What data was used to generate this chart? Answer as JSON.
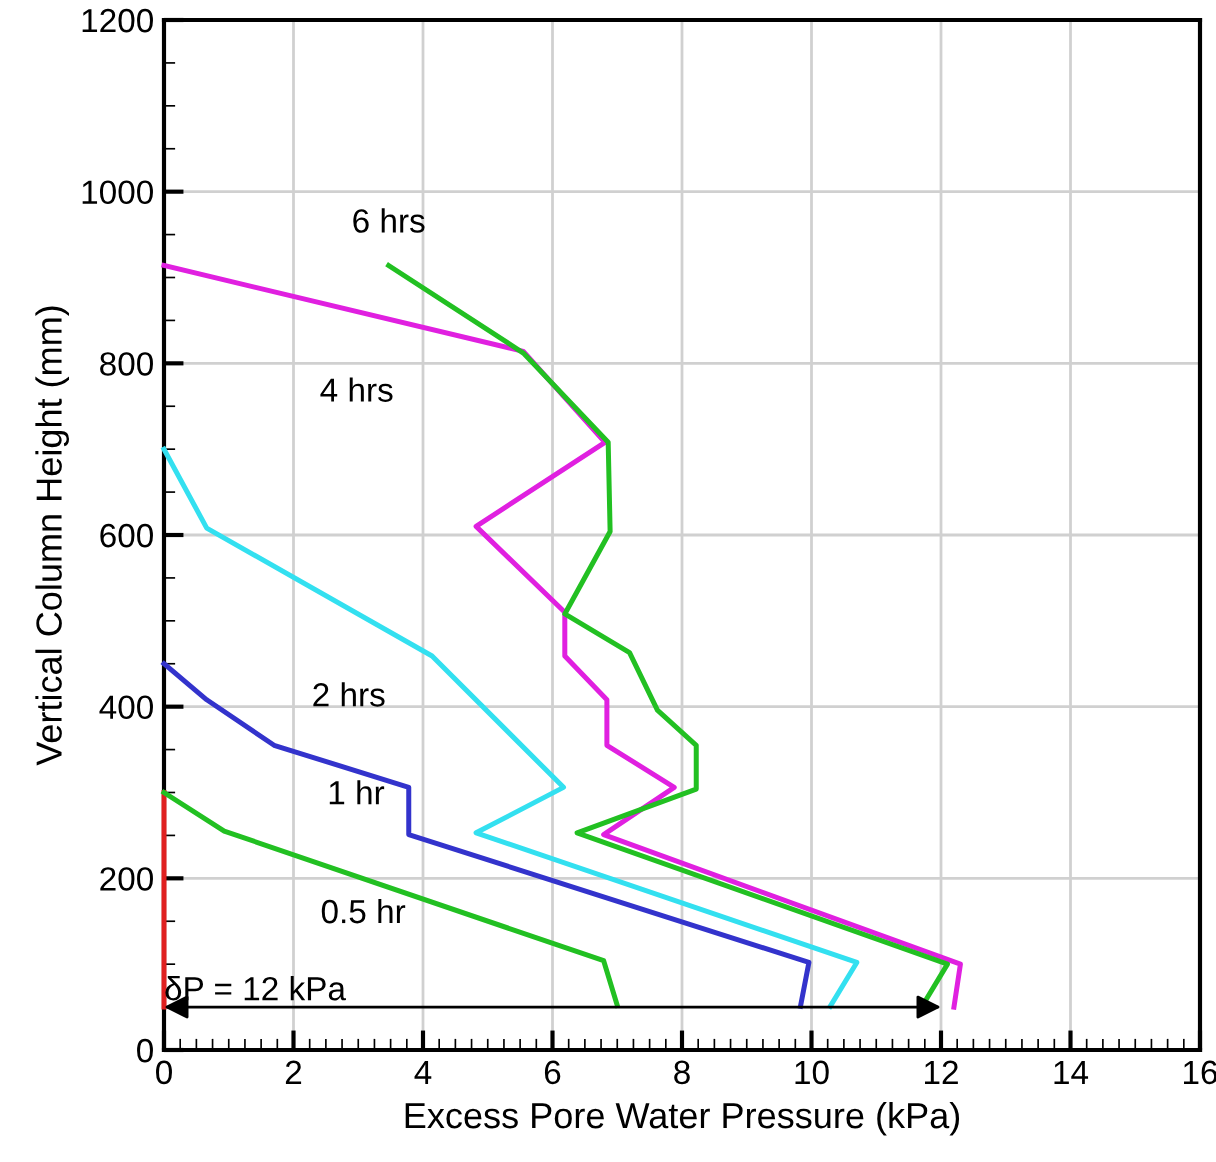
{
  "chart_data": {
    "type": "line",
    "xlabel": "Excess Pore Water Pressure (kPa)",
    "ylabel": "Vertical Column Height (mm)",
    "xlim": [
      0,
      16
    ],
    "xticks": [
      0,
      2,
      4,
      6,
      8,
      10,
      12,
      14,
      16
    ],
    "ylim": [
      0,
      1200
    ],
    "yticks": [
      0,
      200,
      400,
      600,
      800,
      1000,
      1200
    ],
    "grid": true,
    "legend": false,
    "series": [
      {
        "color": "#e02020",
        "x": [
          0,
          0
        ],
        "values": [
          50,
          300
        ]
      },
      {
        "name": "0.5 hr",
        "color": "#22c022",
        "x": [
          0,
          0.93,
          6.79,
          7.0
        ],
        "values": [
          300,
          255,
          104,
          52
        ]
      },
      {
        "name": "1 hr",
        "color": "#3333cc",
        "x": [
          0,
          0.66,
          1.7,
          3.78,
          3.78,
          9.96,
          9.83
        ],
        "values": [
          450,
          408,
          355,
          306,
          251,
          102,
          51
        ]
      },
      {
        "name": "2 hrs",
        "color": "#33e0f0",
        "x": [
          0,
          0.66,
          4.14,
          6.17,
          4.82,
          10.7,
          10.29
        ],
        "values": [
          700,
          608,
          459,
          306,
          253,
          102,
          51
        ]
      },
      {
        "name": "4 hrs",
        "color": "#e020e0",
        "x": [
          0,
          5.55,
          6.81,
          4.82,
          6.19,
          6.19,
          6.84,
          6.84,
          7.88,
          6.79,
          12.3,
          12.2
        ],
        "values": [
          914,
          814,
          708,
          610,
          510,
          459,
          408,
          355,
          306,
          251,
          100,
          50
        ]
      },
      {
        "name": "6 hrs",
        "color": "#22c022",
        "x": [
          3.47,
          5.55,
          6.86,
          6.89,
          6.19,
          7.19,
          7.62,
          8.22,
          8.22,
          6.38,
          12.1,
          11.7
        ],
        "values": [
          914,
          812,
          708,
          604,
          508,
          463,
          396,
          355,
          304,
          253,
          100,
          50
        ]
      }
    ],
    "annotations": [
      {
        "text": "δP = 12 kPa",
        "x": 12,
        "y": 50
      }
    ]
  }
}
